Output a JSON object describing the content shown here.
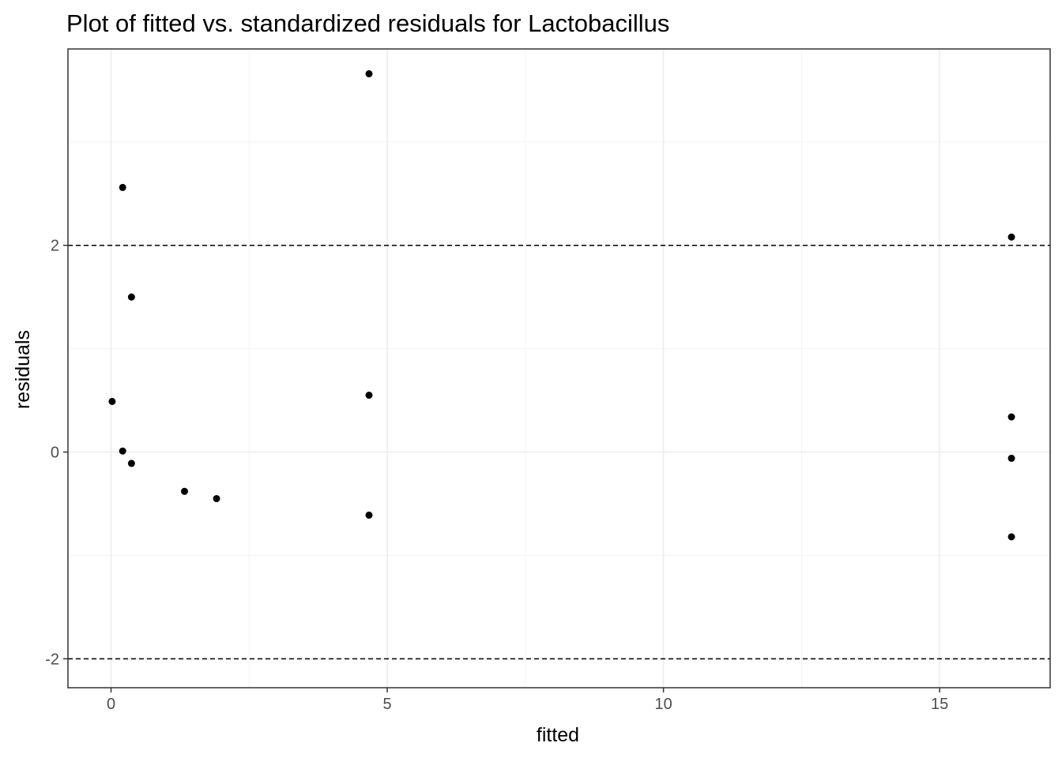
{
  "chart_data": {
    "type": "scatter",
    "title": "Plot of fitted vs. standardized residuals for Lactobacillus",
    "xlabel": "fitted",
    "ylabel": "residuals",
    "xlim": [
      -0.78,
      17.0
    ],
    "ylim": [
      -2.28,
      3.9
    ],
    "x_ticks": [
      0,
      5,
      10,
      15
    ],
    "x_tick_labels": [
      "0",
      "5",
      "10",
      "15"
    ],
    "y_ticks": [
      -2,
      0,
      2
    ],
    "y_tick_labels": [
      "-2",
      "0",
      "2"
    ],
    "x_minor_grid": [
      2.5,
      7.5,
      12.5
    ],
    "y_minor_grid": [
      -1,
      1,
      3
    ],
    "reference_lines": [
      2,
      -2
    ],
    "grid": true,
    "legend": "none",
    "points": [
      {
        "x": 0.02,
        "y": 0.49
      },
      {
        "x": 0.21,
        "y": 2.56
      },
      {
        "x": 0.21,
        "y": 0.01
      },
      {
        "x": 0.37,
        "y": 1.5
      },
      {
        "x": 0.37,
        "y": -0.11
      },
      {
        "x": 1.33,
        "y": -0.38
      },
      {
        "x": 1.91,
        "y": -0.45
      },
      {
        "x": 4.67,
        "y": 3.66
      },
      {
        "x": 4.67,
        "y": 0.55
      },
      {
        "x": 4.67,
        "y": -0.61
      },
      {
        "x": 16.3,
        "y": 2.08
      },
      {
        "x": 16.3,
        "y": 0.34
      },
      {
        "x": 16.3,
        "y": -0.06
      },
      {
        "x": 16.3,
        "y": -0.82
      }
    ],
    "colors": {
      "point": "#000000",
      "panel_border": "#333333",
      "grid_major": "#ebebeb",
      "grid_minor": "#f4f4f4",
      "reference_line": "#000000",
      "tick_label": "#4d4d4d"
    }
  }
}
